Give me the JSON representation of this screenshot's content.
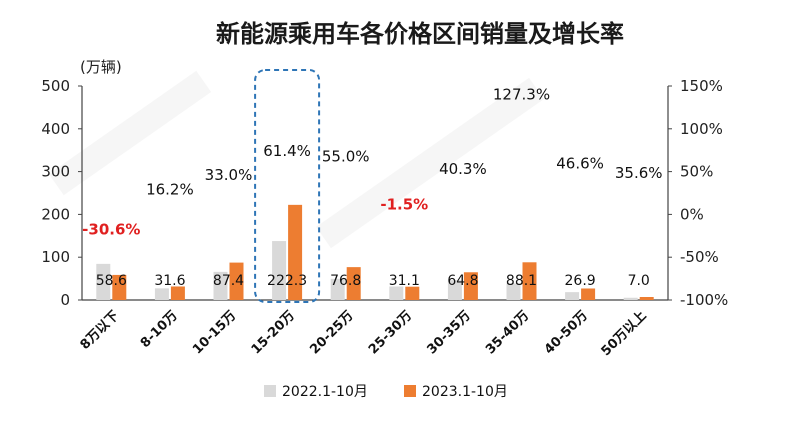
{
  "colors": {
    "series_2022": "#d9d9d9",
    "series_2023": "#ed7d31",
    "negative_rate": "#e02020",
    "highlight_box": "#2e75b6"
  },
  "chart_data": {
    "type": "bar",
    "title": "新能源乘用车各价格区间销量及增长率",
    "y_unit": "(万辆)",
    "ylim": [
      0,
      500
    ],
    "y_ticks": [
      "0",
      "100",
      "200",
      "300",
      "400",
      "500"
    ],
    "y2lim": [
      -100,
      150
    ],
    "y2_ticks": [
      "-100%",
      "-50%",
      "0%",
      "50%",
      "100%",
      "150%"
    ],
    "categories": [
      "8万以下",
      "8-10万",
      "10-15万",
      "15-20万",
      "20-25万",
      "25-30万",
      "30-35万",
      "35-40万",
      "40-50万",
      "50万以上"
    ],
    "series": [
      {
        "name": "2022.1-10月",
        "values": [
          84.4,
          27.2,
          65.7,
          137.7,
          49.5,
          31.6,
          46.2,
          38.7,
          18.4,
          5.2
        ]
      },
      {
        "name": "2023.1-10月",
        "values": [
          58.6,
          31.6,
          87.4,
          222.3,
          76.8,
          31.1,
          64.8,
          88.1,
          26.9,
          7.0
        ]
      }
    ],
    "value_labels": [
      "58.6",
      "31.6",
      "87.4",
      "222.3",
      "76.8",
      "31.1",
      "64.8",
      "88.1",
      "26.9",
      "7.0"
    ],
    "growth_rates": [
      -30.6,
      16.2,
      33.0,
      61.4,
      55.0,
      -1.5,
      40.3,
      127.3,
      46.6,
      35.6
    ],
    "growth_labels": [
      "-30.6%",
      "16.2%",
      "33.0%",
      "61.4%",
      "55.0%",
      "-1.5%",
      "40.3%",
      "127.3%",
      "46.6%",
      "35.6%"
    ],
    "highlight_category": "15-20万",
    "legend_position": "bottom",
    "grid": false
  }
}
